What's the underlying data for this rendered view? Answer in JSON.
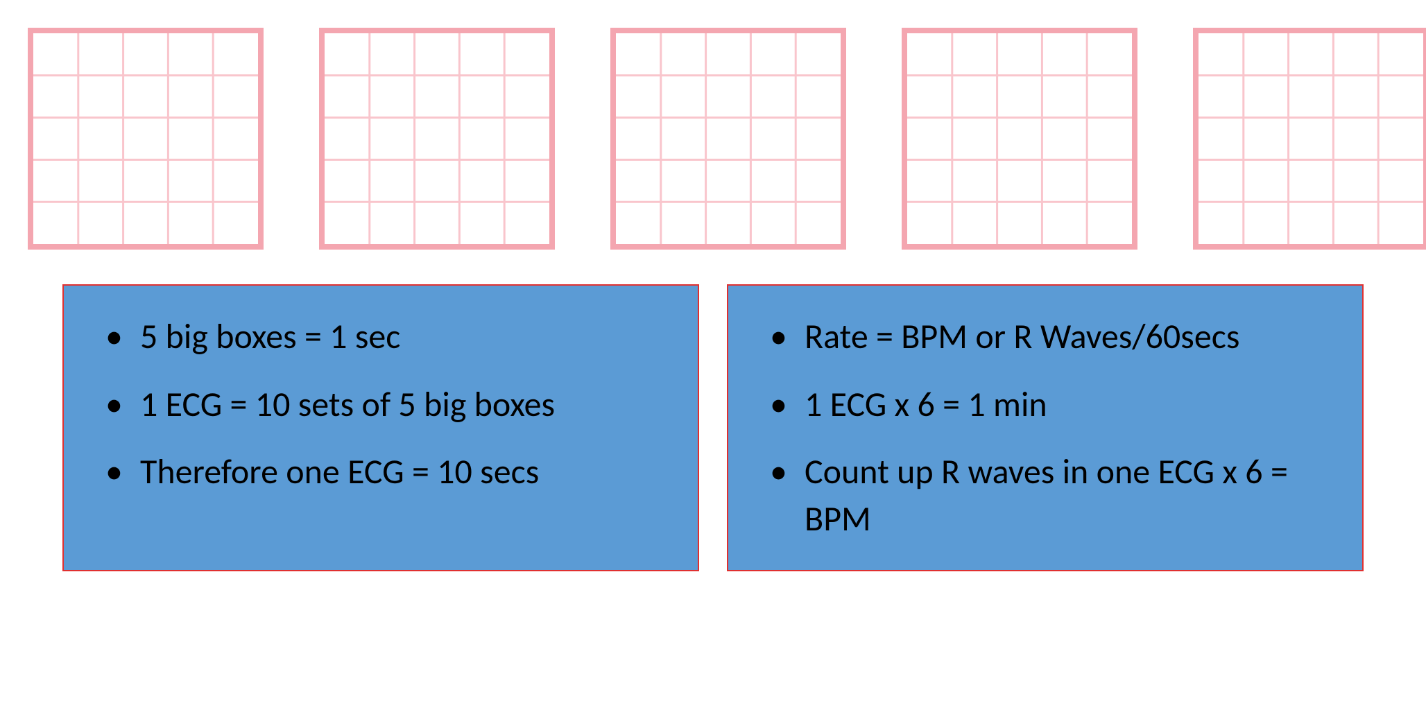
{
  "grids": {
    "count": 5,
    "cells": 5,
    "outer_border_color": "#f4a6b0",
    "outer_border_width": 8,
    "inner_line_color": "#f9c5cc",
    "inner_line_width": 3,
    "background": "#ffffff"
  },
  "panel_left": {
    "background": "#5b9bd5",
    "border_color": "#e03030",
    "text_color": "#000000",
    "font_size": 50,
    "bullets": [
      "5 big boxes = 1 sec",
      "1 ECG = 10 sets of 5 big boxes",
      "Therefore one ECG = 10 secs"
    ]
  },
  "panel_right": {
    "background": "#5b9bd5",
    "border_color": "#e03030",
    "text_color": "#000000",
    "font_size": 50,
    "bullets": [
      "Rate = BPM or R Waves/60secs",
      "1 ECG x 6 = 1 min",
      "Count up R waves in one ECG x 6 = BPM"
    ]
  }
}
